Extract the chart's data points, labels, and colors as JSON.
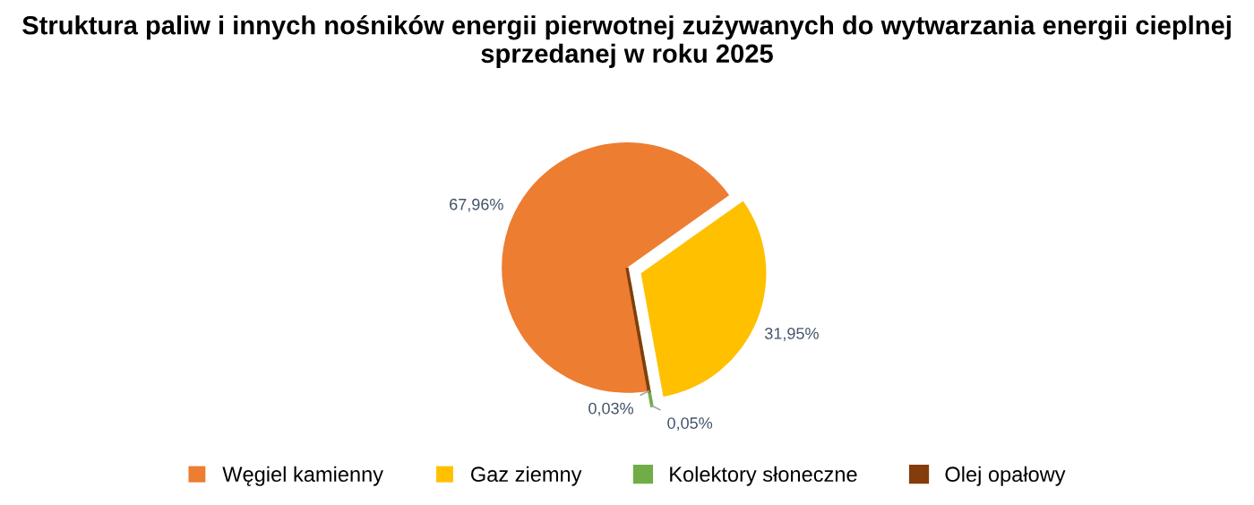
{
  "chart_data": {
    "type": "pie",
    "title": "Struktura paliw i innych nośników energii pierwotnej zużywanych do wytwarzania energii cieplnej\nsprzedanej w roku 2025",
    "categories": [
      "Węgiel kamienny",
      "Gaz ziemny",
      "Kolektory słoneczne",
      "Olej opałowy"
    ],
    "values": [
      67.96,
      31.95,
      0.05,
      0.03
    ],
    "value_labels": [
      "67,96%",
      "31,95%",
      "0,05%",
      "0,03%"
    ],
    "colors": [
      "#ed7d31",
      "#ffc000",
      "#70ad47",
      "#843c0c"
    ],
    "legend": "bottom"
  }
}
